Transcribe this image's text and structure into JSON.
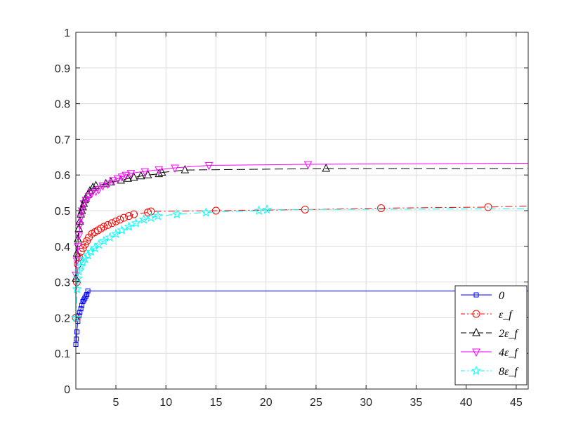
{
  "chart_data": {
    "type": "line",
    "title": "",
    "xlabel": "",
    "ylabel": "",
    "xlim": [
      1,
      46.2
    ],
    "ylim": [
      0,
      1
    ],
    "x_ticks": [
      5,
      10,
      15,
      20,
      25,
      30,
      35,
      40,
      45
    ],
    "y_ticks": [
      0,
      0.1,
      0.2,
      0.3,
      0.4,
      0.5,
      0.6,
      0.7,
      0.8,
      0.9,
      1
    ],
    "x_tick_labels": [
      "5",
      "10",
      "15",
      "20",
      "25",
      "30",
      "35",
      "40",
      "45"
    ],
    "y_tick_labels": [
      "0",
      "0.1",
      "0.2",
      "0.3",
      "0.4",
      "0.5",
      "0.6",
      "0.7",
      "0.8",
      "0.9",
      "1"
    ],
    "grid": true,
    "legend_position": "bottom-right",
    "series": [
      {
        "name": "0",
        "color": "#0000ff",
        "line_style": "solid",
        "marker": "square",
        "x": [
          1.0,
          1.05,
          1.1,
          1.2,
          1.3,
          1.4,
          1.5,
          1.6,
          1.7,
          1.8,
          1.9,
          2.0,
          2.1,
          2.2,
          46.2
        ],
        "y": [
          0.125,
          0.14,
          0.16,
          0.19,
          0.205,
          0.215,
          0.225,
          0.235,
          0.245,
          0.25,
          0.255,
          0.26,
          0.265,
          0.275,
          0.275
        ]
      },
      {
        "name": "ε_f",
        "color": "#ff0000",
        "line_style": "dashdot",
        "marker": "circle",
        "x": [
          1.0,
          1.1,
          1.2,
          1.3,
          1.5,
          1.7,
          1.9,
          2.1,
          2.3,
          2.6,
          2.9,
          3.2,
          3.5,
          3.8,
          4.2,
          4.6,
          5.0,
          5.4,
          5.8,
          6.3,
          6.8,
          8.2,
          8.5,
          15.0,
          23.9,
          31.5,
          42.2,
          46.2
        ],
        "y": [
          0.2,
          0.3,
          0.35,
          0.37,
          0.385,
          0.395,
          0.405,
          0.415,
          0.425,
          0.435,
          0.44,
          0.445,
          0.45,
          0.455,
          0.46,
          0.465,
          0.47,
          0.475,
          0.48,
          0.485,
          0.49,
          0.495,
          0.498,
          0.5,
          0.503,
          0.507,
          0.51,
          0.513
        ]
      },
      {
        "name": "2ε_f",
        "color": "#000000",
        "line_style": "dashed",
        "marker": "triangle-up",
        "x": [
          1.0,
          1.1,
          1.2,
          1.3,
          1.4,
          1.5,
          1.6,
          1.7,
          1.8,
          1.9,
          2.0,
          2.2,
          2.4,
          2.7,
          3.0,
          4.0,
          4.5,
          5.5,
          6.2,
          6.8,
          7.5,
          8.2,
          9.3,
          9.6,
          11.9,
          26.0,
          46.2
        ],
        "y": [
          0.31,
          0.38,
          0.42,
          0.45,
          0.47,
          0.49,
          0.5,
          0.51,
          0.52,
          0.53,
          0.535,
          0.545,
          0.555,
          0.565,
          0.57,
          0.575,
          0.58,
          0.585,
          0.59,
          0.593,
          0.597,
          0.6,
          0.603,
          0.607,
          0.614,
          0.618,
          0.618
        ]
      },
      {
        "name": "4ε_f",
        "color": "#ff00ff",
        "line_style": "solid",
        "marker": "triangle-down",
        "x": [
          1.0,
          1.1,
          1.2,
          1.3,
          1.4,
          1.5,
          1.6,
          1.8,
          2.0,
          2.3,
          2.6,
          3.0,
          3.3,
          3.7,
          4.2,
          4.7,
          5.2,
          5.6,
          6.0,
          6.5,
          7.9,
          9.3,
          10.9,
          14.3,
          24.2,
          46.2
        ],
        "y": [
          0.32,
          0.36,
          0.4,
          0.43,
          0.46,
          0.48,
          0.5,
          0.52,
          0.53,
          0.54,
          0.55,
          0.555,
          0.56,
          0.57,
          0.575,
          0.585,
          0.59,
          0.595,
          0.6,
          0.605,
          0.61,
          0.615,
          0.62,
          0.627,
          0.63,
          0.633
        ]
      },
      {
        "name": "8ε_f",
        "color": "#00ffff",
        "line_style": "dashdot",
        "marker": "star",
        "x": [
          1.0,
          1.1,
          1.2,
          1.3,
          1.5,
          1.7,
          1.9,
          2.2,
          2.5,
          2.9,
          3.3,
          3.8,
          4.4,
          5.0,
          5.6,
          6.3,
          7.0,
          7.8,
          8.5,
          9.2,
          11.1,
          14.0,
          19.3,
          20.1,
          46.2
        ],
        "y": [
          0.2,
          0.28,
          0.31,
          0.33,
          0.345,
          0.355,
          0.365,
          0.375,
          0.385,
          0.395,
          0.405,
          0.415,
          0.425,
          0.435,
          0.445,
          0.455,
          0.465,
          0.475,
          0.48,
          0.485,
          0.49,
          0.495,
          0.5,
          0.503,
          0.505
        ]
      }
    ]
  }
}
